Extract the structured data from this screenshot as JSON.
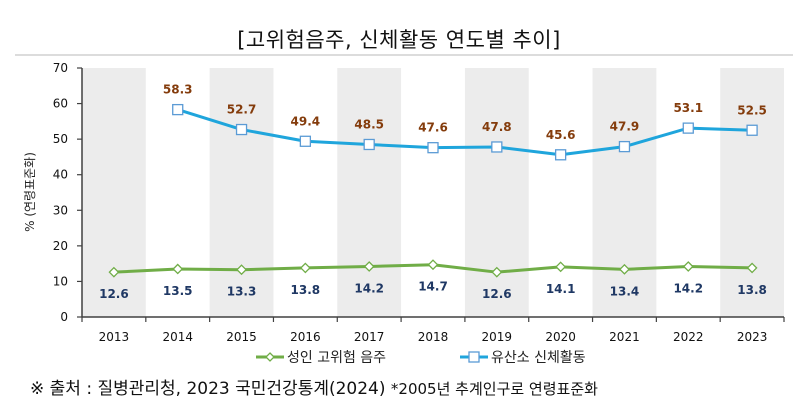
{
  "title": "[고위험음주, 신체활동 연도별 추이]",
  "source": {
    "main": "※ 출처 : 질병관리청, 2023 국민건강통계(2024)",
    "note": "*2005년 추계인구로 연령표준화"
  },
  "chart_data": {
    "type": "line",
    "title": "[고위험음주, 신체활동 연도별 추이]",
    "xlabel": "",
    "ylabel": "% (연령표준화)",
    "ylim": [
      0,
      70
    ],
    "yticks": [
      "0",
      "10",
      "20",
      "30",
      "40",
      "50",
      "60",
      "70"
    ],
    "categories": [
      "2013",
      "2014",
      "2015",
      "2016",
      "2017",
      "2018",
      "2019",
      "2020",
      "2021",
      "2022",
      "2023"
    ],
    "alternating_bands": true,
    "legend_position": "bottom",
    "series": [
      {
        "name": "성인 고위험 음주",
        "color": "#70ad47",
        "label_color": "#1f3864",
        "marker": "diamond",
        "values": [
          12.6,
          13.5,
          13.3,
          13.8,
          14.2,
          14.7,
          12.6,
          14.1,
          13.4,
          14.2,
          13.8
        ],
        "labels": [
          "12.6",
          "13.5",
          "13.3",
          "13.8",
          "14.2",
          "14.7",
          "12.6",
          "14.1",
          "13.4",
          "14.2",
          "13.8"
        ]
      },
      {
        "name": "유산소 신체활동",
        "color": "#1fa5dc",
        "label_color": "#843c0c",
        "marker": "square",
        "values": [
          null,
          58.3,
          52.7,
          49.4,
          48.5,
          47.6,
          47.8,
          45.6,
          47.9,
          53.1,
          52.5
        ],
        "labels": [
          "",
          "58.3",
          "52.7",
          "49.4",
          "48.5",
          "47.6",
          "47.8",
          "45.6",
          "47.9",
          "53.1",
          "52.5"
        ]
      }
    ]
  }
}
